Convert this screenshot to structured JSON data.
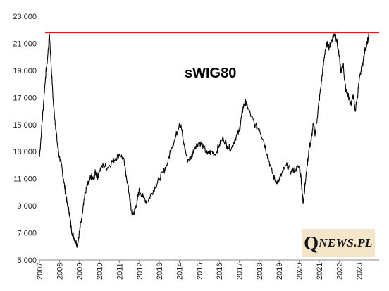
{
  "chart_data": {
    "type": "line",
    "title": "sWIG80",
    "xlabel": "",
    "ylabel": "",
    "ylim": [
      5000,
      23000
    ],
    "xlim": [
      2007,
      2024
    ],
    "y_ticks": [
      "5 000",
      "7 000",
      "9 000",
      "11 000",
      "13 000",
      "15 000",
      "17 000",
      "19 000",
      "21 000",
      "23 000"
    ],
    "x_ticks": [
      "2007",
      "2008",
      "2009",
      "2010",
      "2011",
      "2012",
      "2013",
      "2014",
      "2015",
      "2016",
      "2017",
      "2018",
      "2019",
      "2020",
      "2021",
      "2022",
      "2023"
    ],
    "grid": false,
    "series": [
      {
        "color": "#000000",
        "x": [
          2007.0,
          2007.1,
          2007.2,
          2007.3,
          2007.4,
          2007.5,
          2007.6,
          2007.7,
          2007.8,
          2007.9,
          2008.0,
          2008.1,
          2008.2,
          2008.3,
          2008.4,
          2008.5,
          2008.6,
          2008.7,
          2008.8,
          2008.9,
          2009.0,
          2009.1,
          2009.2,
          2009.3,
          2009.4,
          2009.5,
          2009.6,
          2009.7,
          2009.8,
          2009.9,
          2010.0,
          2010.2,
          2010.4,
          2010.6,
          2010.8,
          2011.0,
          2011.2,
          2011.35,
          2011.5,
          2011.6,
          2011.7,
          2011.8,
          2011.9,
          2012.0,
          2012.2,
          2012.4,
          2012.6,
          2012.8,
          2013.0,
          2013.2,
          2013.4,
          2013.6,
          2013.8,
          2014.0,
          2014.1,
          2014.2,
          2014.4,
          2014.6,
          2014.8,
          2015.0,
          2015.2,
          2015.4,
          2015.6,
          2015.8,
          2016.0,
          2016.2,
          2016.4,
          2016.6,
          2016.8,
          2017.0,
          2017.1,
          2017.2,
          2017.3,
          2017.4,
          2017.6,
          2017.8,
          2018.0,
          2018.2,
          2018.4,
          2018.6,
          2018.8,
          2019.0,
          2019.2,
          2019.4,
          2019.6,
          2019.8,
          2020.0,
          2020.1,
          2020.15,
          2020.2,
          2020.3,
          2020.4,
          2020.5,
          2020.6,
          2020.7,
          2020.8,
          2020.9,
          2021.0,
          2021.1,
          2021.2,
          2021.3,
          2021.4,
          2021.5,
          2021.6,
          2021.7,
          2021.8,
          2021.9,
          2022.0,
          2022.1,
          2022.2,
          2022.3,
          2022.4,
          2022.5,
          2022.6,
          2022.7,
          2022.8,
          2022.9,
          2023.0,
          2023.1,
          2023.2,
          2023.3,
          2023.4,
          2023.5
        ],
        "values": [
          12600,
          14500,
          16500,
          18500,
          19800,
          21700,
          19000,
          16500,
          15000,
          13500,
          12600,
          12000,
          11000,
          10000,
          9000,
          8500,
          7200,
          6800,
          6400,
          6100,
          7100,
          8000,
          9200,
          10000,
          10500,
          10800,
          11200,
          10900,
          11500,
          11100,
          11600,
          12000,
          11800,
          12200,
          12500,
          12800,
          12500,
          11200,
          9800,
          8600,
          8400,
          8800,
          9400,
          10200,
          9600,
          9300,
          9900,
          10400,
          11000,
          11500,
          12100,
          13300,
          14000,
          15100,
          14800,
          13800,
          12400,
          12600,
          13400,
          13700,
          13400,
          12800,
          13000,
          12800,
          13500,
          14000,
          13400,
          13200,
          14000,
          14500,
          15500,
          16300,
          16700,
          16400,
          15600,
          14900,
          14700,
          13900,
          12800,
          11700,
          10800,
          10900,
          11600,
          12000,
          11500,
          11700,
          11900,
          11000,
          9900,
          9300,
          10600,
          12000,
          13300,
          13800,
          15000,
          14300,
          15500,
          16800,
          18000,
          19300,
          20500,
          21000,
          20700,
          21100,
          21500,
          21800,
          21000,
          20000,
          18800,
          19500,
          17800,
          17400,
          16900,
          16500,
          17200,
          16000,
          16900,
          18200,
          19000,
          19700,
          20600,
          21100,
          21600
        ]
      }
    ],
    "reference_lines": [
      {
        "value": 21800,
        "color": "#d62020"
      }
    ]
  },
  "logo": {
    "q": "Q",
    "rest": "NEWS.PL"
  }
}
